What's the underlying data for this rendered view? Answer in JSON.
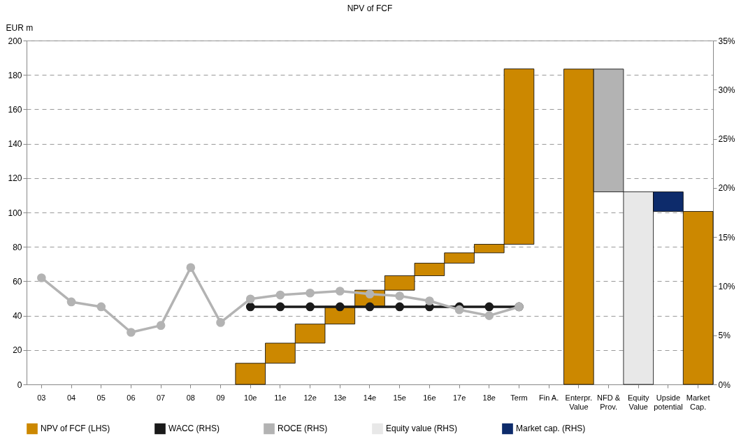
{
  "chart_data": {
    "type": "bar",
    "title": "NPV of FCF",
    "ylabel": "EUR m",
    "categories": [
      "03",
      "04",
      "05",
      "06",
      "07",
      "08",
      "09",
      "10e",
      "11e",
      "12e",
      "13e",
      "14e",
      "15e",
      "16e",
      "17e",
      "18e",
      "Term",
      "Fin A.",
      "Enterpr.\nValue",
      "NFD &\nProv.",
      "Equity\nValue",
      "Upside\npotential",
      "Market\nCap."
    ],
    "series": [
      {
        "name": "NPV of FCF (LHS)",
        "color": "#cc8800",
        "values": [
          null,
          null,
          null,
          null,
          null,
          null,
          null,
          12.3,
          11.7,
          11.1,
          10.3,
          9.4,
          8.4,
          7.3,
          6.0,
          5.0,
          102.0,
          null,
          183.4,
          null,
          null,
          null,
          100.6
        ],
        "base": [
          null,
          null,
          null,
          null,
          null,
          null,
          null,
          0,
          12.3,
          24.0,
          35.1,
          45.4,
          54.8,
          63.2,
          70.5,
          76.5,
          81.5,
          null,
          0,
          null,
          null,
          null,
          0
        ]
      },
      {
        "name": "WACC (RHS)",
        "type": "line",
        "axis": "y2",
        "color": "#1a1a1a",
        "values": [
          null,
          null,
          null,
          null,
          null,
          null,
          null,
          7.9,
          7.9,
          7.9,
          7.9,
          7.9,
          7.9,
          7.9,
          7.9,
          7.9,
          7.9,
          null,
          null,
          null,
          null,
          null,
          null
        ]
      },
      {
        "name": "ROCE (RHS)",
        "type": "line",
        "axis": "y2",
        "color": "#b3b3b3",
        "values": [
          10.85,
          8.4,
          7.9,
          5.3,
          6.0,
          11.9,
          6.3,
          8.7,
          9.1,
          9.3,
          9.5,
          9.2,
          9.0,
          8.5,
          7.6,
          7.0,
          7.9,
          null,
          null,
          null,
          null,
          null,
          null
        ]
      },
      {
        "color": "#b3b3b3",
        "values": [
          null,
          null,
          null,
          null,
          null,
          null,
          null,
          null,
          null,
          null,
          null,
          null,
          null,
          null,
          null,
          null,
          null,
          null,
          null,
          71.4,
          null,
          null,
          null
        ],
        "base": [
          null,
          null,
          null,
          null,
          null,
          null,
          null,
          null,
          null,
          null,
          null,
          null,
          null,
          null,
          null,
          null,
          null,
          null,
          null,
          112.0,
          null,
          null,
          null
        ]
      },
      {
        "name": "Equity value (RHS)",
        "color": "#e8e8e8",
        "values": [
          null,
          null,
          null,
          null,
          null,
          null,
          null,
          null,
          null,
          null,
          null,
          null,
          null,
          null,
          null,
          null,
          null,
          null,
          null,
          null,
          112.0,
          null,
          null
        ],
        "base": [
          null,
          null,
          null,
          null,
          null,
          null,
          null,
          null,
          null,
          null,
          null,
          null,
          null,
          null,
          null,
          null,
          null,
          null,
          null,
          null,
          0,
          null,
          null
        ]
      },
      {
        "name": "Market cap. (RHS)",
        "color": "#0d2b6b",
        "values": [
          null,
          null,
          null,
          null,
          null,
          null,
          null,
          null,
          null,
          null,
          null,
          null,
          null,
          null,
          null,
          null,
          null,
          null,
          null,
          null,
          null,
          11.4,
          null
        ],
        "base": [
          null,
          null,
          null,
          null,
          null,
          null,
          null,
          null,
          null,
          null,
          null,
          null,
          null,
          null,
          null,
          null,
          null,
          null,
          null,
          null,
          null,
          100.6,
          null
        ]
      }
    ],
    "ylim": [
      0,
      200
    ],
    "yticks": [
      0,
      20,
      40,
      60,
      80,
      100,
      120,
      140,
      160,
      180,
      200
    ],
    "y2lim": [
      0,
      35
    ],
    "y2ticks": [
      {
        "value": 0,
        "label": "0%"
      },
      {
        "value": 5,
        "label": "5%"
      },
      {
        "value": 10,
        "label": "10%"
      },
      {
        "value": 15,
        "label": "15%"
      },
      {
        "value": 20,
        "label": "20%"
      },
      {
        "value": 25,
        "label": "25%"
      },
      {
        "value": 30,
        "label": "30%"
      },
      {
        "value": 35,
        "label": "35%"
      }
    ],
    "grid": "y",
    "legend": "bottom",
    "marker": "circle",
    "line_style": "solid"
  }
}
